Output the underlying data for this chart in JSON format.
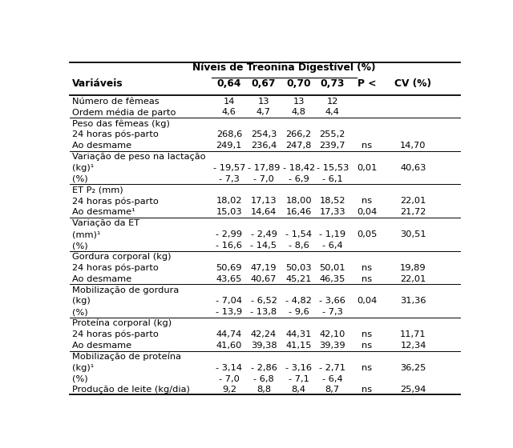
{
  "title": "Níveis de Treonina Digestível (%)",
  "col_labels": [
    "0,64",
    "0,67",
    "0,70",
    "0,73",
    "P <",
    "CV (%)"
  ],
  "rows": [
    {
      "label": "Número de fêmeas",
      "vals": [
        "14",
        "13",
        "13",
        "12",
        "",
        ""
      ],
      "section": false
    },
    {
      "label": "Ordem média de parto",
      "vals": [
        "4,6",
        "4,7",
        "4,8",
        "4,4",
        "",
        ""
      ],
      "section": false
    },
    {
      "label": "Peso das fêmeas (kg)",
      "vals": [
        "",
        "",
        "",
        "",
        "",
        ""
      ],
      "section": true
    },
    {
      "label": "24 horas pós-parto",
      "vals": [
        "268,6",
        "254,3",
        "266,2",
        "255,2",
        "",
        ""
      ],
      "section": false
    },
    {
      "label": "Ao desmame",
      "vals": [
        "249,1",
        "236,4",
        "247,8",
        "239,7",
        "ns",
        "14,70"
      ],
      "section": false
    },
    {
      "label": "Variação de peso na lactação",
      "vals": [
        "",
        "",
        "",
        "",
        "",
        ""
      ],
      "section": true
    },
    {
      "label": "(kg)¹",
      "vals": [
        "- 19,57",
        "- 17,89",
        "- 18,42",
        "- 15,53",
        "0,01",
        "40,63"
      ],
      "section": false
    },
    {
      "label": "(%)",
      "vals": [
        "- 7,3",
        "- 7,0",
        "- 6,9",
        "- 6,1",
        "",
        ""
      ],
      "section": false
    },
    {
      "label": "ET P₂ (mm)",
      "vals": [
        "",
        "",
        "",
        "",
        "",
        ""
      ],
      "section": true
    },
    {
      "label": "24 horas pós-parto",
      "vals": [
        "18,02",
        "17,13",
        "18,00",
        "18,52",
        "ns",
        "22,01"
      ],
      "section": false
    },
    {
      "label": "Ao desmame¹",
      "vals": [
        "15,03",
        "14,64",
        "16,46",
        "17,33",
        "0,04",
        "21,72"
      ],
      "section": false
    },
    {
      "label": "Variação da ET",
      "vals": [
        "",
        "",
        "",
        "",
        "",
        ""
      ],
      "section": true
    },
    {
      "label": "(mm)¹",
      "vals": [
        "- 2,99",
        "- 2,49",
        "- 1,54",
        "- 1,19",
        "0,05",
        "30,51"
      ],
      "section": false
    },
    {
      "label": "(%)",
      "vals": [
        "- 16,6",
        "- 14,5",
        "- 8,6",
        "- 6,4",
        "",
        ""
      ],
      "section": false
    },
    {
      "label": "Gordura corporal (kg)",
      "vals": [
        "",
        "",
        "",
        "",
        "",
        ""
      ],
      "section": true
    },
    {
      "label": "24 horas pós-parto",
      "vals": [
        "50,69",
        "47,19",
        "50,03",
        "50,01",
        "ns",
        "19,89"
      ],
      "section": false
    },
    {
      "label": "Ao desmame",
      "vals": [
        "43,65",
        "40,67",
        "45,21",
        "46,35",
        "ns",
        "22,01"
      ],
      "section": false
    },
    {
      "label": "Mobilização de gordura",
      "vals": [
        "",
        "",
        "",
        "",
        "",
        ""
      ],
      "section": true
    },
    {
      "label": "(kg)",
      "vals": [
        "- 7,04",
        "- 6,52",
        "- 4,82",
        "- 3,66",
        "0,04",
        "31,36"
      ],
      "section": false
    },
    {
      "label": "(%)",
      "vals": [
        "- 13,9",
        "- 13,8",
        "- 9,6",
        "- 7,3",
        "",
        ""
      ],
      "section": false
    },
    {
      "label": "Proteína corporal (kg)",
      "vals": [
        "",
        "",
        "",
        "",
        "",
        ""
      ],
      "section": true
    },
    {
      "label": "24 horas pós-parto",
      "vals": [
        "44,74",
        "42,24",
        "44,31",
        "42,10",
        "ns",
        "11,71"
      ],
      "section": false
    },
    {
      "label": "Ao desmame",
      "vals": [
        "41,60",
        "39,38",
        "41,15",
        "39,39",
        "ns",
        "12,34"
      ],
      "section": false
    },
    {
      "label": "Mobilização de proteína",
      "vals": [
        "",
        "",
        "",
        "",
        "",
        ""
      ],
      "section": true
    },
    {
      "label": "(kg)¹",
      "vals": [
        "- 3,14",
        "- 2,86",
        "- 3,16",
        "- 2,71",
        "ns",
        "36,25"
      ],
      "section": false
    },
    {
      "label": "(%)",
      "vals": [
        "- 7,0",
        "- 6,8",
        "- 7,1",
        "- 6,4",
        "",
        ""
      ],
      "section": false
    },
    {
      "label": "Produção de leite (kg/dia)",
      "vals": [
        "9,2",
        "8,8",
        "8,4",
        "8,7",
        "ns",
        "25,94"
      ],
      "section": false
    }
  ],
  "section_row_indices": [
    2,
    5,
    8,
    11,
    14,
    17,
    20,
    23
  ],
  "bg_color": "#ffffff",
  "text_color": "#000000",
  "line_color": "#000000",
  "font_size": 8.2,
  "header_font_size": 8.8
}
